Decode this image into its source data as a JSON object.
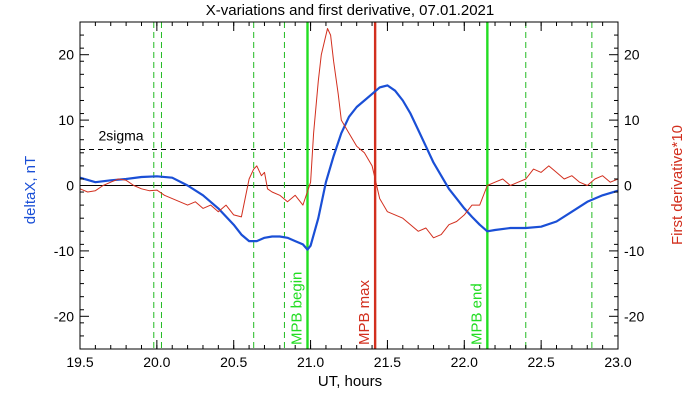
{
  "chart_data": {
    "type": "line",
    "title": "X-variations and first derivative, 07.01.2021",
    "xlabel": "UT, hours",
    "ylabel_left": "deltaX, nT",
    "ylabel_right": "First derivative*10",
    "xlim": [
      19.5,
      23.0
    ],
    "ylim": [
      -25,
      25
    ],
    "x_ticks": [
      19.5,
      20.0,
      20.5,
      21.0,
      21.5,
      22.0,
      22.5,
      23.0
    ],
    "x_tick_labels": [
      "19.5",
      "20.0",
      "20.5",
      "21.0",
      "21.5",
      "22.0",
      "22.5",
      "23.0"
    ],
    "y_ticks": [
      -20,
      -10,
      0,
      10,
      20
    ],
    "y_tick_labels": [
      "-20",
      "-10",
      "0",
      "10",
      "20"
    ],
    "y2_tick_labels": [
      "-20",
      "-10",
      "0",
      "10",
      "20"
    ],
    "grid": false,
    "colors": {
      "deltaX": "#1a4fd6",
      "derivative": "#d22f1e",
      "mpb_green": "#22dd22",
      "mpb_max": "#d22f1e",
      "dashed_green": "#22bb22",
      "sigma": "#000000"
    },
    "series": [
      {
        "name": "deltaX, nT",
        "axis": "left",
        "x": [
          19.5,
          19.6,
          19.7,
          19.8,
          19.9,
          20.0,
          20.1,
          20.2,
          20.3,
          20.4,
          20.5,
          20.55,
          20.6,
          20.65,
          20.7,
          20.75,
          20.8,
          20.85,
          20.9,
          20.95,
          20.98,
          21.0,
          21.05,
          21.1,
          21.15,
          21.2,
          21.25,
          21.3,
          21.35,
          21.4,
          21.45,
          21.5,
          21.55,
          21.6,
          21.65,
          21.7,
          21.75,
          21.8,
          21.85,
          21.9,
          21.95,
          22.0,
          22.05,
          22.1,
          22.15,
          22.2,
          22.3,
          22.4,
          22.5,
          22.6,
          22.7,
          22.8,
          22.9,
          23.0
        ],
        "values": [
          1.2,
          0.5,
          0.8,
          1.0,
          1.3,
          1.4,
          1.2,
          0.0,
          -1.5,
          -3.5,
          -6.0,
          -7.5,
          -8.5,
          -8.5,
          -8.0,
          -7.8,
          -7.8,
          -8.0,
          -8.5,
          -9.0,
          -9.8,
          -9.2,
          -5.0,
          0.5,
          4.5,
          8.0,
          10.5,
          12.0,
          13.0,
          14.0,
          15.0,
          15.3,
          14.5,
          13.0,
          11.0,
          8.5,
          6.0,
          3.5,
          1.5,
          -0.5,
          -2.0,
          -3.5,
          -4.8,
          -6.0,
          -7.0,
          -6.8,
          -6.5,
          -6.5,
          -6.3,
          -5.5,
          -4.0,
          -2.5,
          -1.5,
          -0.8
        ]
      },
      {
        "name": "First derivative*10",
        "axis": "right",
        "x": [
          19.5,
          19.55,
          19.6,
          19.65,
          19.7,
          19.75,
          19.8,
          19.85,
          19.9,
          19.95,
          20.0,
          20.05,
          20.1,
          20.15,
          20.2,
          20.25,
          20.3,
          20.35,
          20.4,
          20.45,
          20.5,
          20.55,
          20.6,
          20.63,
          20.65,
          20.68,
          20.7,
          20.72,
          20.75,
          20.8,
          20.85,
          20.9,
          20.95,
          21.0,
          21.02,
          21.05,
          21.07,
          21.09,
          21.11,
          21.13,
          21.15,
          21.18,
          21.2,
          21.25,
          21.3,
          21.35,
          21.4,
          21.45,
          21.5,
          21.55,
          21.6,
          21.65,
          21.7,
          21.75,
          21.8,
          21.85,
          21.9,
          21.95,
          22.0,
          22.05,
          22.1,
          22.15,
          22.2,
          22.25,
          22.3,
          22.35,
          22.4,
          22.45,
          22.5,
          22.55,
          22.6,
          22.65,
          22.7,
          22.75,
          22.8,
          22.85,
          22.9,
          22.95,
          23.0
        ],
        "values": [
          -0.5,
          -1.0,
          -0.8,
          0.0,
          0.5,
          1.0,
          0.8,
          0.0,
          -0.5,
          -0.8,
          -0.7,
          -1.5,
          -2.0,
          -2.5,
          -3.0,
          -2.5,
          -3.5,
          -3.0,
          -4.0,
          -3.0,
          -4.5,
          -4.8,
          1.0,
          2.5,
          3.0,
          1.5,
          2.0,
          -0.5,
          -1.0,
          -1.5,
          -2.5,
          -1.5,
          -3.0,
          0.5,
          8.0,
          16.0,
          20.0,
          22.0,
          24.0,
          23.0,
          19.0,
          14.0,
          10.0,
          8.0,
          6.0,
          5.0,
          3.0,
          -2.0,
          -4.0,
          -4.5,
          -5.0,
          -6.0,
          -7.0,
          -6.5,
          -8.0,
          -7.5,
          -6.0,
          -5.5,
          -4.5,
          -3.0,
          -3.0,
          0.0,
          0.5,
          1.0,
          0.0,
          0.5,
          1.0,
          2.5,
          2.0,
          3.0,
          2.0,
          1.0,
          1.5,
          0.5,
          0.0,
          1.0,
          1.5,
          0.5,
          1.0
        ]
      }
    ],
    "vertical_lines": [
      {
        "x": 19.98,
        "style": "dashed",
        "color_key": "dashed_green"
      },
      {
        "x": 20.03,
        "style": "dashed",
        "color_key": "dashed_green"
      },
      {
        "x": 20.63,
        "style": "dashed",
        "color_key": "dashed_green"
      },
      {
        "x": 20.83,
        "style": "dashed",
        "color_key": "dashed_green"
      },
      {
        "x": 20.98,
        "style": "solid",
        "color_key": "mpb_green",
        "label": "MPB begin"
      },
      {
        "x": 21.42,
        "style": "solid",
        "color_key": "mpb_max",
        "label": "MPB max"
      },
      {
        "x": 22.15,
        "style": "solid",
        "color_key": "mpb_green",
        "label": "MPB end"
      },
      {
        "x": 22.4,
        "style": "dashed",
        "color_key": "dashed_green"
      },
      {
        "x": 22.83,
        "style": "dashed",
        "color_key": "dashed_green"
      }
    ],
    "horizontal_lines": [
      {
        "y": 5.5,
        "style": "dashed",
        "color_key": "sigma",
        "label": "2sigma"
      },
      {
        "y": 0,
        "style": "solid",
        "color_key": "sigma"
      }
    ]
  }
}
